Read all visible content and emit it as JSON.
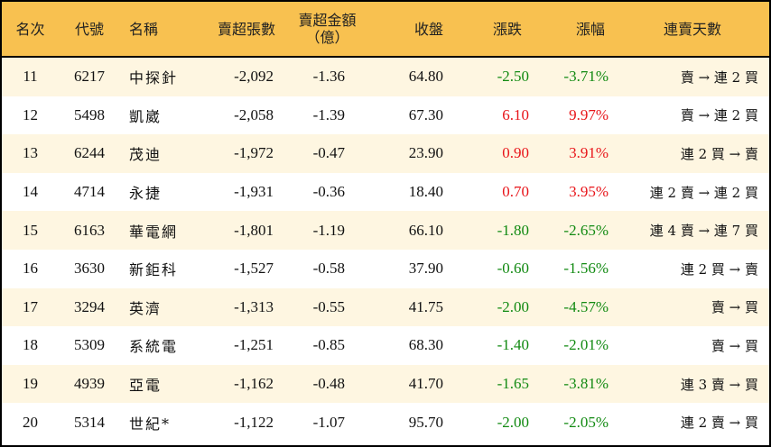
{
  "headers": [
    "名次",
    "代號",
    "名稱",
    "賣超張數",
    "賣超金額\n（億）",
    "收盤",
    "漲跌",
    "漲幅",
    "連賣天數"
  ],
  "colors": {
    "header_bg": "#F8C150",
    "alt_row_bg": "#FEF6E1",
    "up": "#e8151a",
    "down": "#128a12"
  },
  "rows": [
    {
      "rank": "11",
      "code": "6217",
      "name": "中探針",
      "shares": "-2,092",
      "amount": "-1.36",
      "close": "64.80",
      "change": "-2.50",
      "pct": "-3.71%",
      "streak": "賣 → 連 2 買",
      "dir": "down"
    },
    {
      "rank": "12",
      "code": "5498",
      "name": "凱崴",
      "shares": "-2,058",
      "amount": "-1.39",
      "close": "67.30",
      "change": "6.10",
      "pct": "9.97%",
      "streak": "賣 → 連 2 買",
      "dir": "up"
    },
    {
      "rank": "13",
      "code": "6244",
      "name": "茂迪",
      "shares": "-1,972",
      "amount": "-0.47",
      "close": "23.90",
      "change": "0.90",
      "pct": "3.91%",
      "streak": "連 2 買 → 賣",
      "dir": "up"
    },
    {
      "rank": "14",
      "code": "4714",
      "name": "永捷",
      "shares": "-1,931",
      "amount": "-0.36",
      "close": "18.40",
      "change": "0.70",
      "pct": "3.95%",
      "streak": "連 2 賣 → 連 2 買",
      "dir": "up"
    },
    {
      "rank": "15",
      "code": "6163",
      "name": "華電網",
      "shares": "-1,801",
      "amount": "-1.19",
      "close": "66.10",
      "change": "-1.80",
      "pct": "-2.65%",
      "streak": "連 4 賣 → 連 7 買",
      "dir": "down"
    },
    {
      "rank": "16",
      "code": "3630",
      "name": "新鉅科",
      "shares": "-1,527",
      "amount": "-0.58",
      "close": "37.90",
      "change": "-0.60",
      "pct": "-1.56%",
      "streak": "連 2 買 → 賣",
      "dir": "down"
    },
    {
      "rank": "17",
      "code": "3294",
      "name": "英濟",
      "shares": "-1,313",
      "amount": "-0.55",
      "close": "41.75",
      "change": "-2.00",
      "pct": "-4.57%",
      "streak": "賣 → 買",
      "dir": "down"
    },
    {
      "rank": "18",
      "code": "5309",
      "name": "系統電",
      "shares": "-1,251",
      "amount": "-0.85",
      "close": "68.30",
      "change": "-1.40",
      "pct": "-2.01%",
      "streak": "賣 → 買",
      "dir": "down"
    },
    {
      "rank": "19",
      "code": "4939",
      "name": "亞電",
      "shares": "-1,162",
      "amount": "-0.48",
      "close": "41.70",
      "change": "-1.65",
      "pct": "-3.81%",
      "streak": "連 3 賣 → 買",
      "dir": "down"
    },
    {
      "rank": "20",
      "code": "5314",
      "name": "世紀*",
      "shares": "-1,122",
      "amount": "-1.07",
      "close": "95.70",
      "change": "-2.00",
      "pct": "-2.05%",
      "streak": "連 2 賣 → 買",
      "dir": "down"
    }
  ]
}
